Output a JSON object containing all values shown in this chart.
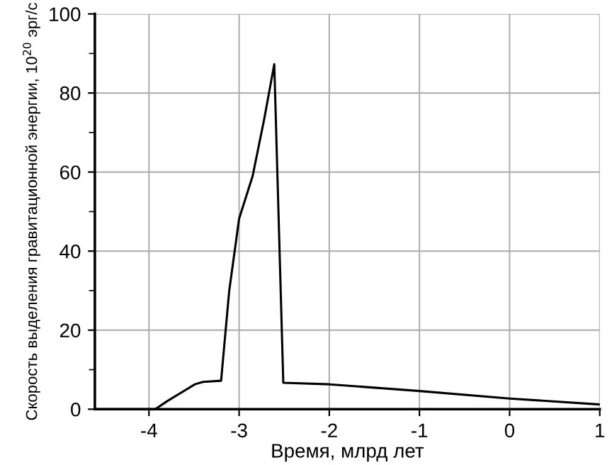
{
  "chart_data": {
    "type": "line",
    "xlabel": "Время, млрд лет",
    "ylabel": "Скорость выделения гравитационной энергии, 10$^{20}$ эрг/с",
    "x": [
      -4.6,
      -3.93,
      -3.8,
      -3.49,
      -3.4,
      -3.2,
      -3.11,
      -3.0,
      -2.85,
      -2.72,
      -2.61,
      -2.51,
      -2.0,
      -1.0,
      0.0,
      1.0
    ],
    "series": [
      {
        "color": "#000000",
        "values": [
          0,
          0,
          2,
          6.3,
          6.9,
          7.2,
          29.9,
          48.2,
          59,
          73.6,
          87.3,
          6.7,
          6.3,
          4.6,
          2.7,
          1.2
        ]
      }
    ],
    "xlim": [
      -4.6,
      1
    ],
    "ylim": [
      0,
      100
    ],
    "xticks": [
      -4,
      -3,
      -2,
      -1,
      0,
      1
    ],
    "yticks": [
      0,
      {
        "value": 10,
        "label": null
      },
      20,
      {
        "value": 30,
        "label": null
      },
      40,
      {
        "value": 50,
        "label": null
      },
      60,
      {
        "value": 70,
        "label": null
      },
      80,
      {
        "value": 90,
        "label": null
      },
      100
    ],
    "grid": true,
    "marker": "none",
    "line_style": "solid",
    "legend": false
  }
}
